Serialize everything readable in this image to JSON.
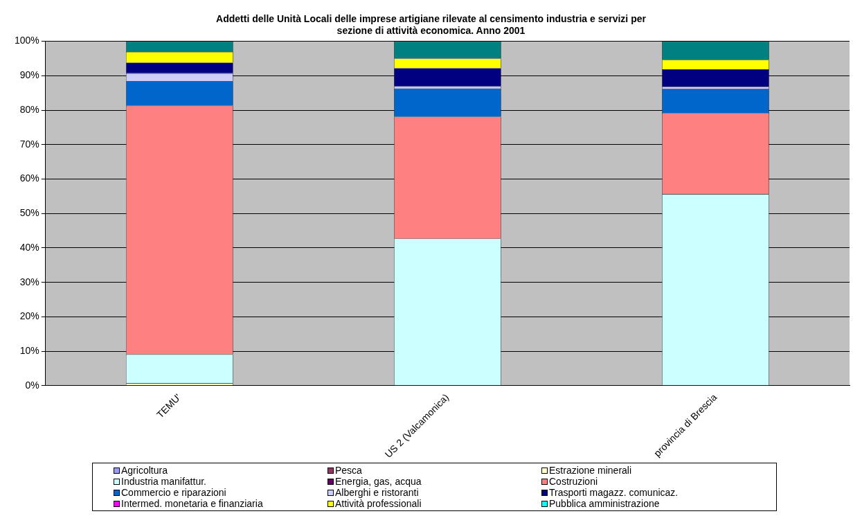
{
  "chart_data": {
    "type": "bar",
    "title": "Addetti delle Unità Locali delle imprese artigiane rilevate al censimento industria e servizi per sezione di attività economica. Anno 2001",
    "categories": [
      "TEMU'",
      "US 2 (Valcamonica)",
      "provincia di Brescia"
    ],
    "stacked": true,
    "grid": "y",
    "legend": "bottom",
    "ylim": [
      0,
      100
    ],
    "yticks": [
      {
        "value": 0,
        "label": "0%"
      },
      {
        "value": 10,
        "label": "10%"
      },
      {
        "value": 20,
        "label": "20%"
      },
      {
        "value": 30,
        "label": "30%"
      },
      {
        "value": 40,
        "label": "40%"
      },
      {
        "value": 50,
        "label": "50%"
      },
      {
        "value": 60,
        "label": "60%"
      },
      {
        "value": 70,
        "label": "70%"
      },
      {
        "value": 80,
        "label": "80%"
      },
      {
        "value": 90,
        "label": "90%"
      },
      {
        "value": 100,
        "label": "100%"
      }
    ],
    "series": [
      {
        "name": "Agricoltura",
        "color": "#9999ff",
        "values": [
          0,
          0,
          0
        ]
      },
      {
        "name": "Pesca",
        "color": "#993366",
        "values": [
          0,
          0,
          0
        ]
      },
      {
        "name": "Estrazione  minerali",
        "color": "#ffffcc",
        "values": [
          0.7,
          0,
          0
        ]
      },
      {
        "name": "Industria  manifattur.",
        "color": "#ccffff",
        "values": [
          8.4,
          42.7,
          55.6
        ]
      },
      {
        "name": "Energia, gas, acqua",
        "color": "#660066",
        "values": [
          0,
          0,
          0
        ]
      },
      {
        "name": "Costruzioni",
        "color": "#ff8080",
        "values": [
          72.2,
          35.4,
          23.6
        ]
      },
      {
        "name": "Commercio e riparazioni",
        "color": "#0066cc",
        "values": [
          7.1,
          8.2,
          7.0
        ]
      },
      {
        "name": "Alberghi e ristoranti",
        "color": "#ccccff",
        "values": [
          2.3,
          0.6,
          0.6
        ]
      },
      {
        "name": "Trasporti magazz. comunicaz.",
        "color": "#000080",
        "values": [
          3.1,
          5.3,
          5.1
        ]
      },
      {
        "name": "Intermed. monetaria e finanziaria",
        "color": "#ff00ff",
        "values": [
          0,
          0,
          0
        ]
      },
      {
        "name": "Attività professionali",
        "color": "#ffff00",
        "values": [
          3.1,
          2.8,
          2.7
        ]
      },
      {
        "name": "Pubblica amministrazione",
        "color": "#00ffff",
        "values": [
          0,
          0,
          0
        ]
      },
      {
        "color": "#008080",
        "values": [
          3.1,
          5.0,
          5.4
        ]
      }
    ]
  }
}
